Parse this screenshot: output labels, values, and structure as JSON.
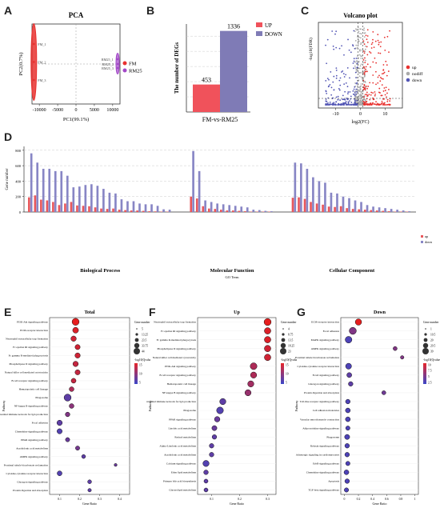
{
  "panels": {
    "A": {
      "letter": "A"
    },
    "B": {
      "letter": "B"
    },
    "C": {
      "letter": "C"
    },
    "D": {
      "letter": "D"
    },
    "E": {
      "letter": "E"
    },
    "F": {
      "letter": "F"
    },
    "G": {
      "letter": "G"
    }
  },
  "chart_data": [
    {
      "id": "A",
      "type": "scatter",
      "title": "PCA",
      "xlabel": "PC1(99.1%)",
      "ylabel": "PC2(0.7%)",
      "xticks": [
        "-10000",
        "-5000",
        "0",
        "5000",
        "10000"
      ],
      "xlim": [
        -12000,
        12000
      ],
      "ylim": [
        -1,
        1
      ],
      "series": [
        {
          "name": "FM",
          "color": "#e8312f",
          "labels": [
            "FM_1",
            "FM_2",
            "FM_3"
          ],
          "x": [
            -11500,
            -11500,
            -11500
          ],
          "y": [
            0.5,
            0.05,
            -0.4
          ]
        },
        {
          "name": "RM25",
          "color": "#a348c8",
          "labels": [
            "RM25_1",
            "RM25_2",
            "RM25_3"
          ],
          "x": [
            11300,
            11400,
            11350
          ],
          "y": [
            0.12,
            0.0,
            -0.1
          ]
        }
      ],
      "legend": "right"
    },
    {
      "id": "B",
      "type": "bar",
      "ylabel": "The number of DEGs",
      "categories": [
        "FM-vs-RM25"
      ],
      "series": [
        {
          "name": "UP",
          "color": "#f0525b",
          "values": [
            453
          ]
        },
        {
          "name": "DOWN",
          "color": "#7f7bb6",
          "values": [
            1336
          ]
        }
      ],
      "ylim": [
        0,
        1450
      ],
      "legend": "top-right"
    },
    {
      "id": "C",
      "type": "scatter",
      "title": "Volcano plot",
      "xlabel": "log2(FC)",
      "ylabel": "-log10(FDR)",
      "xticks": [
        "-10",
        "0",
        "10"
      ],
      "xlim": [
        -17,
        17
      ],
      "series": [
        {
          "name": "up",
          "color": "#e8312f"
        },
        {
          "name": "nodiff",
          "color": "#aaaaaa"
        },
        {
          "name": "down",
          "color": "#5356b5"
        }
      ],
      "legend": "right"
    },
    {
      "id": "D",
      "type": "bar",
      "xlabel": "GO Term",
      "ylabel": "Gene number",
      "yticks": [
        "0",
        "200",
        "400",
        "600",
        "800"
      ],
      "ylim": [
        0,
        850
      ],
      "groups": [
        "Biological Process",
        "Molecular Function",
        "Cellular Component"
      ],
      "group_sizes": [
        24,
        14,
        20
      ],
      "series": [
        {
          "name": "up",
          "color": "#e9585c",
          "values": [
            190,
            215,
            160,
            150,
            130,
            90,
            110,
            130,
            85,
            80,
            75,
            60,
            45,
            40,
            45,
            30,
            25,
            20,
            20,
            15,
            10,
            8,
            5,
            5,
            200,
            175,
            75,
            45,
            40,
            30,
            20,
            20,
            15,
            10,
            5,
            5,
            5,
            5,
            185,
            190,
            170,
            130,
            110,
            95,
            70,
            65,
            75,
            50,
            40,
            35,
            30,
            25,
            20,
            15,
            10,
            5,
            5,
            5
          ]
        },
        {
          "name": "down",
          "color": "#8886c5",
          "values": [
            760,
            640,
            560,
            560,
            530,
            530,
            470,
            320,
            330,
            350,
            360,
            340,
            300,
            250,
            240,
            165,
            140,
            140,
            110,
            100,
            100,
            80,
            35,
            30,
            790,
            530,
            150,
            130,
            110,
            100,
            90,
            80,
            70,
            60,
            30,
            25,
            15,
            10,
            640,
            630,
            560,
            450,
            400,
            380,
            250,
            240,
            200,
            180,
            150,
            130,
            90,
            70,
            60,
            50,
            40,
            30,
            20,
            10
          ]
        }
      ],
      "legend": "right"
    },
    {
      "id": "E",
      "type": "scatter",
      "title": "Total",
      "xlabel": "Gene Ratio",
      "ylabel": "Pathway",
      "xticks": [
        "0.1",
        "0.2",
        "0.3",
        "0.4"
      ],
      "xlim": [
        0.05,
        0.45
      ],
      "categories": [
        "PI3K-Akt signaling pathway",
        "ECM-receptor interaction",
        "Neutrophil extracellular trap formation",
        "Fc epsilon RI signaling pathway",
        "Fc gamma R-mediated phagocytosis",
        "Phospholipase D signaling pathway",
        "Natural killer cell mediated cytotoxicity",
        "B cell receptor signaling pathway",
        "Hematopoietic cell lineage",
        "Phagosome",
        "NF-kappa B signaling pathway",
        "Intestinal immune network for IgA production",
        "Focal adhesion",
        "Chemokine signaling pathway",
        "PPAR signaling pathway",
        "Arachidonic acid metabolism",
        "AMPK signaling pathway",
        "Proximal tubule bicarbonate reclamation",
        "Cytokine-cytokine receptor interaction",
        "Glucagon signaling pathway",
        "Protein digestion and absorption"
      ],
      "x": [
        0.18,
        0.18,
        0.17,
        0.19,
        0.19,
        0.18,
        0.19,
        0.17,
        0.16,
        0.14,
        0.16,
        0.14,
        0.1,
        0.1,
        0.14,
        0.19,
        0.22,
        0.38,
        0.1,
        0.25,
        0.25
      ],
      "size": [
        84,
        50,
        40,
        35,
        38,
        40,
        35,
        30,
        28,
        84,
        28,
        25,
        40,
        35,
        20,
        20,
        15,
        5,
        30,
        15,
        10
      ],
      "pvalue": [
        15,
        14,
        13,
        13,
        13,
        12,
        12,
        12,
        10,
        3,
        7,
        6,
        3,
        2,
        4,
        5,
        3,
        4,
        2,
        3,
        3
      ],
      "size_legend": {
        "title": "Gene number",
        "values": [
          "5",
          "13.25",
          "23.5",
          "33.75",
          "44"
        ]
      },
      "color_legend": {
        "title": "-log10(Qvalue)",
        "ticks": [
          "15",
          "10",
          "5"
        ]
      }
    },
    {
      "id": "F",
      "type": "scatter",
      "title": "Up",
      "xlabel": "Gene Ratio",
      "ylabel": "Pathway",
      "xticks": [
        "0.1",
        "0.2",
        "0.3"
      ],
      "xlim": [
        0.05,
        0.33
      ],
      "categories": [
        "Neutrophil extracellular trap formation",
        "Fc epsilon RI signaling pathway",
        "Fc gamma R-mediated phagocytosis",
        "Phospholipase D signaling pathway",
        "Natural killer cell mediated cytotoxicity",
        "PI3K-Akt signaling pathway",
        "B cell receptor signaling pathway",
        "Hematopoietic cell lineage",
        "NF-kappa B signaling pathway",
        "Intestinal immune network for IgA production",
        "Phagosome",
        "PPAR signaling pathway",
        "Linoleic acid metabolism",
        "Retinol metabolism",
        "Alpha-Linolenic acid metabolism",
        "Arachidonic acid metabolism",
        "Calcium signaling pathway",
        "Ether lipid metabolism",
        "Primary bile acid biosynthesis",
        "Glycerolipid metabolism"
      ],
      "x": [
        0.3,
        0.3,
        0.3,
        0.3,
        0.3,
        0.25,
        0.25,
        0.24,
        0.23,
        0.14,
        0.13,
        0.12,
        0.11,
        0.11,
        0.1,
        0.1,
        0.08,
        0.08,
        0.08,
        0.08
      ],
      "size": [
        20,
        16,
        16,
        16,
        16,
        18,
        14,
        14,
        14,
        14,
        18,
        10,
        8,
        6,
        6,
        6,
        14,
        6,
        4,
        4
      ],
      "pvalue": [
        15,
        14,
        14,
        13,
        13,
        10,
        10,
        9,
        8,
        3,
        2,
        4,
        4,
        3,
        3,
        3,
        2,
        3,
        3,
        3
      ],
      "size_legend": {
        "title": "Gene number",
        "values": [
          "4",
          "8.75",
          "13.5",
          "18.25",
          "23"
        ]
      },
      "color_legend": {
        "title": "-log10(Qvalue)",
        "ticks": [
          "15",
          "10",
          "5"
        ]
      }
    },
    {
      "id": "G",
      "type": "scatter",
      "title": "Down",
      "xlabel": "Gene Ratio",
      "ylabel": "Pathway",
      "xticks": [
        "0",
        "0.2",
        "0.4",
        "0.6",
        "0.8",
        "1"
      ],
      "xlim": [
        -0.05,
        1.05
      ],
      "categories": [
        "ECM-receptor interaction",
        "Focal adhesion",
        "MAPK signaling pathway",
        "AMPK signaling pathway",
        "Proximal tubule bicarbonate reclamation",
        "Cytokine-cytokine receptor interaction",
        "FoxO signaling pathway",
        "Glucagon signaling pathway",
        "Protein digestion and absorption",
        "Toll-like receptor signaling pathway",
        "Cell adhesion molecules",
        "Vascular smooth muscle contraction",
        "Adipocytokine signaling pathway",
        "Phagosome",
        "Relaxin signaling pathway",
        "Adrenergic signaling in cardiomyocytes",
        "ErbB signaling pathway",
        "Chemokine signaling pathway",
        "Apoptosis",
        "TGF-beta signaling pathway"
      ],
      "x": [
        0.2,
        0.12,
        0.06,
        0.72,
        0.82,
        0.06,
        0.07,
        0.09,
        0.56,
        0.05,
        0.05,
        0.05,
        0.05,
        0.04,
        0.04,
        0.04,
        0.05,
        0.03,
        0.04,
        0.03
      ],
      "size": [
        30,
        40,
        35,
        8,
        5,
        25,
        15,
        12,
        8,
        12,
        14,
        14,
        10,
        16,
        12,
        12,
        10,
        14,
        12,
        10
      ],
      "pvalue": [
        10,
        4,
        1,
        4,
        4,
        1,
        2,
        2,
        3,
        1,
        1,
        1,
        1,
        1,
        1,
        1,
        1,
        1,
        1,
        1
      ],
      "size_legend": {
        "title": "Gene number",
        "values": [
          "1",
          "10.5",
          "20",
          "29.5",
          "39"
        ]
      },
      "color_legend": {
        "title": "-log10(Qvalue)",
        "ticks": [
          "10",
          "7.5",
          "5",
          "2.5"
        ]
      }
    }
  ]
}
